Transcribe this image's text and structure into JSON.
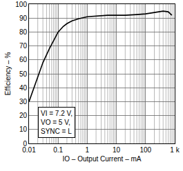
{
  "chart_data": {
    "type": "line",
    "x_label": "IO – Output Current – mA",
    "y_label": "Efficiency – %",
    "x": [
      0.01,
      0.015,
      0.02,
      0.03,
      0.05,
      0.07,
      0.1,
      0.15,
      0.2,
      0.3,
      0.5,
      1,
      2,
      5,
      10,
      20,
      50,
      100,
      200,
      400,
      600,
      800
    ],
    "values": [
      30,
      40,
      48,
      58,
      68,
      74,
      80,
      84,
      86,
      88,
      89.5,
      91,
      91.5,
      92,
      92,
      92,
      92.5,
      93,
      94,
      95,
      94.5,
      92
    ],
    "color": "#000000",
    "log": "x",
    "xlim": [
      0.01,
      1000
    ],
    "xticks": [
      0.01,
      0.1,
      1,
      10,
      100,
      {
        "value": 1000,
        "label": "1 k"
      }
    ],
    "ylim": [
      0,
      100
    ],
    "yticks": [
      0,
      10,
      20,
      30,
      40,
      50,
      60,
      70,
      80,
      90,
      100
    ],
    "grid": true,
    "annotations": [
      "VI = 7.2 V,",
      "VO = 5 V,",
      "SYNC = L"
    ]
  }
}
